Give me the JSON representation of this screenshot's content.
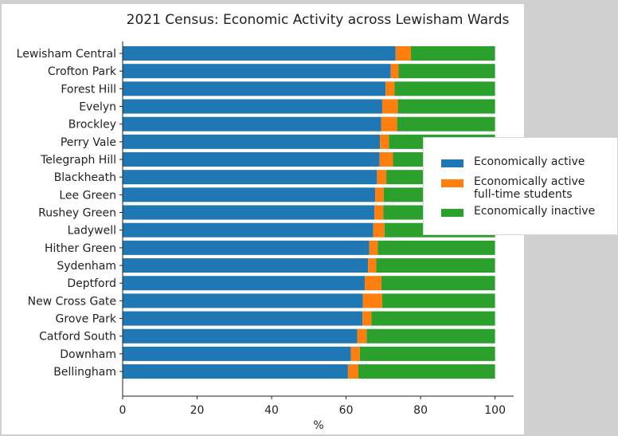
{
  "chart_data": {
    "type": "bar",
    "orientation": "horizontal",
    "stacked": true,
    "title": "2021 Census: Economic Activity across Lewisham Wards",
    "xlabel": "%",
    "ylabel": "",
    "xlim": [
      0,
      105
    ],
    "xticks": [
      "0",
      "20",
      "40",
      "60",
      "80",
      "100"
    ],
    "categories": [
      "Lewisham Central",
      "Crofton Park",
      "Forest Hill",
      "Evelyn",
      "Brockley",
      "Perry Vale",
      "Telegraph Hill",
      "Blackheath",
      "Lee Green",
      "Rushey Green",
      "Ladywell",
      "Hither Green",
      "Sydenham",
      "Deptford",
      "New Cross Gate",
      "Grove Park",
      "Catford South",
      "Downham",
      "Bellingham"
    ],
    "series": [
      {
        "name": "Economically active",
        "color": "#1f77b4",
        "values": [
          73.3,
          72.0,
          70.6,
          69.7,
          69.4,
          69.1,
          69.0,
          68.3,
          67.8,
          67.6,
          67.3,
          66.2,
          65.9,
          65.0,
          64.5,
          64.4,
          63.0,
          61.3,
          60.5
        ]
      },
      {
        "name": "Economically active\nfull-time students",
        "color": "#ff7f0e",
        "values": [
          4.1,
          2.1,
          2.4,
          4.2,
          4.3,
          2.4,
          3.6,
          2.5,
          2.3,
          2.4,
          3.0,
          2.3,
          2.2,
          4.5,
          5.2,
          2.4,
          2.5,
          2.4,
          2.8
        ]
      },
      {
        "name": "Economically inactive",
        "color": "#2ca02c",
        "values": [
          22.6,
          25.9,
          27.0,
          26.1,
          26.3,
          28.5,
          27.4,
          29.2,
          29.9,
          30.0,
          29.7,
          31.5,
          31.9,
          30.5,
          30.3,
          33.2,
          34.5,
          36.3,
          36.7
        ]
      }
    ],
    "legend_position": "center-right"
  }
}
